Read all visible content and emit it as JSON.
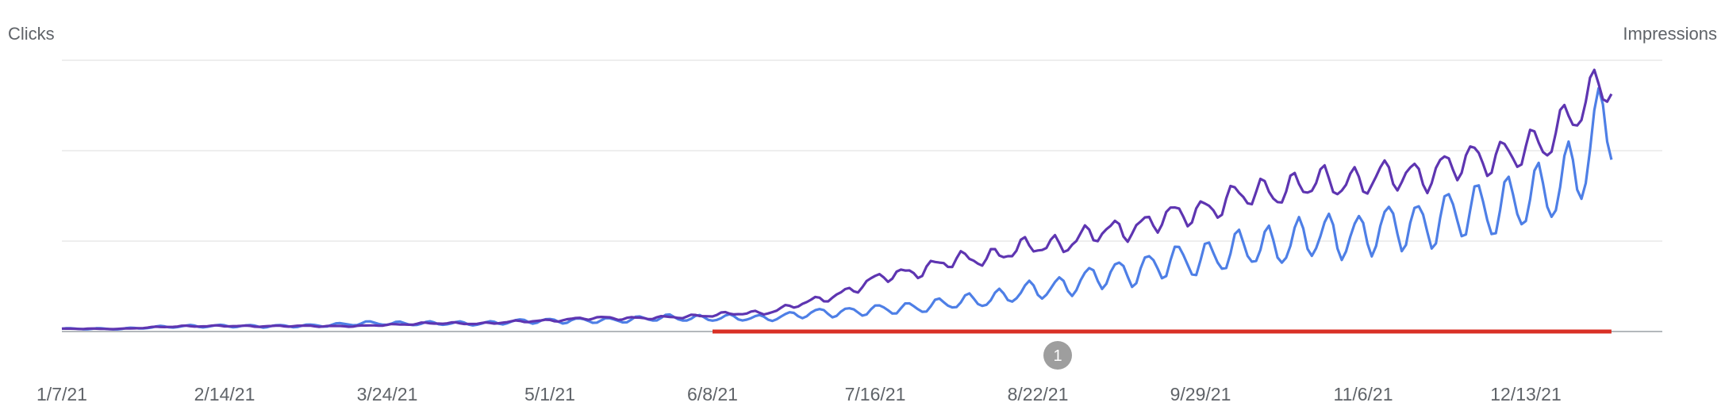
{
  "chart_data": {
    "type": "line",
    "left_axis_title": "Clicks",
    "right_axis_title": "Impressions",
    "x_tick_labels": [
      "1/7/21",
      "2/14/21",
      "3/24/21",
      "5/1/21",
      "6/8/21",
      "7/16/21",
      "8/22/21",
      "9/29/21",
      "11/6/21",
      "12/13/21"
    ],
    "x_range": [
      "2021-01-07",
      "2022-01-04"
    ],
    "y_range_relative": [
      0,
      1
    ],
    "grid": true,
    "legend": "none",
    "series": [
      {
        "role": "clicks",
        "color": "#4e7fe6",
        "x": [
          "2021-01-07",
          "2021-01-21",
          "2021-02-04",
          "2021-02-18",
          "2021-03-04",
          "2021-03-18",
          "2021-04-01",
          "2021-04-15",
          "2021-04-29",
          "2021-05-13",
          "2021-05-27",
          "2021-06-06",
          "2021-06-20",
          "2021-07-04",
          "2021-07-18",
          "2021-08-01",
          "2021-08-15",
          "2021-08-29",
          "2021-09-12",
          "2021-09-26",
          "2021-10-10",
          "2021-10-24",
          "2021-11-07",
          "2021-11-21",
          "2021-12-05",
          "2021-12-19",
          "2021-12-27",
          "2022-01-04"
        ],
        "y": [
          0.01,
          0.01,
          0.02,
          0.02,
          0.02,
          0.03,
          0.03,
          0.03,
          0.04,
          0.04,
          0.05,
          0.05,
          0.05,
          0.07,
          0.08,
          0.1,
          0.13,
          0.17,
          0.22,
          0.26,
          0.3,
          0.34,
          0.36,
          0.4,
          0.45,
          0.5,
          0.6,
          0.8
        ]
      },
      {
        "role": "impressions",
        "color": "#5e35b1",
        "x": [
          "2021-01-07",
          "2021-01-21",
          "2021-02-04",
          "2021-02-18",
          "2021-03-04",
          "2021-03-18",
          "2021-04-01",
          "2021-04-15",
          "2021-04-29",
          "2021-05-13",
          "2021-05-27",
          "2021-06-06",
          "2021-06-20",
          "2021-07-04",
          "2021-07-18",
          "2021-08-01",
          "2021-08-15",
          "2021-08-29",
          "2021-09-12",
          "2021-09-26",
          "2021-10-10",
          "2021-10-24",
          "2021-11-07",
          "2021-11-21",
          "2021-12-05",
          "2021-12-19",
          "2021-12-27",
          "2022-01-04"
        ],
        "y": [
          0.01,
          0.01,
          0.02,
          0.02,
          0.02,
          0.02,
          0.03,
          0.03,
          0.04,
          0.05,
          0.05,
          0.06,
          0.07,
          0.12,
          0.2,
          0.25,
          0.29,
          0.33,
          0.38,
          0.43,
          0.5,
          0.54,
          0.56,
          0.58,
          0.64,
          0.68,
          0.83,
          0.92
        ]
      }
    ],
    "annotation": {
      "label": "1",
      "range": [
        "2021-06-08",
        "2022-01-04"
      ],
      "color": "#d93025"
    }
  }
}
